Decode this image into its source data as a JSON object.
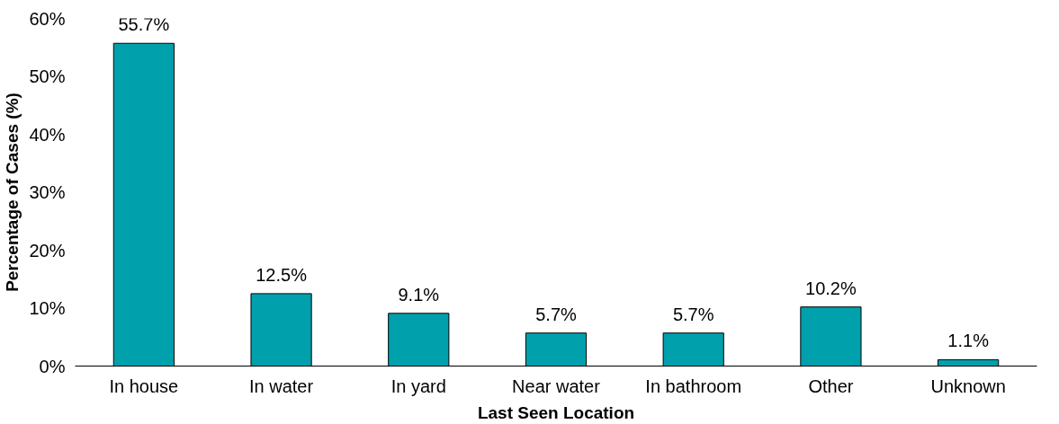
{
  "chart_data": {
    "type": "bar",
    "xlabel": "Last Seen Location",
    "ylabel": "Percentage of Cases (%)",
    "categories": [
      "In house",
      "In water",
      "In yard",
      "Near water",
      "In bathroom",
      "Other",
      "Unknown"
    ],
    "values": [
      55.7,
      12.5,
      9.1,
      5.7,
      5.7,
      10.2,
      1.1
    ],
    "value_labels": [
      "55.7%",
      "12.5%",
      "9.1%",
      "5.7%",
      "5.7%",
      "10.2%",
      "1.1%"
    ],
    "color": "#00a0ad",
    "ylim": [
      0,
      60
    ],
    "yticks": [
      {
        "value": 0,
        "label": "0%"
      },
      {
        "value": 10,
        "label": "10%"
      },
      {
        "value": 20,
        "label": "20%"
      },
      {
        "value": 30,
        "label": "30%"
      },
      {
        "value": 40,
        "label": "40%"
      },
      {
        "value": 50,
        "label": "50%"
      },
      {
        "value": 60,
        "label": "60%"
      }
    ],
    "grid": false
  }
}
